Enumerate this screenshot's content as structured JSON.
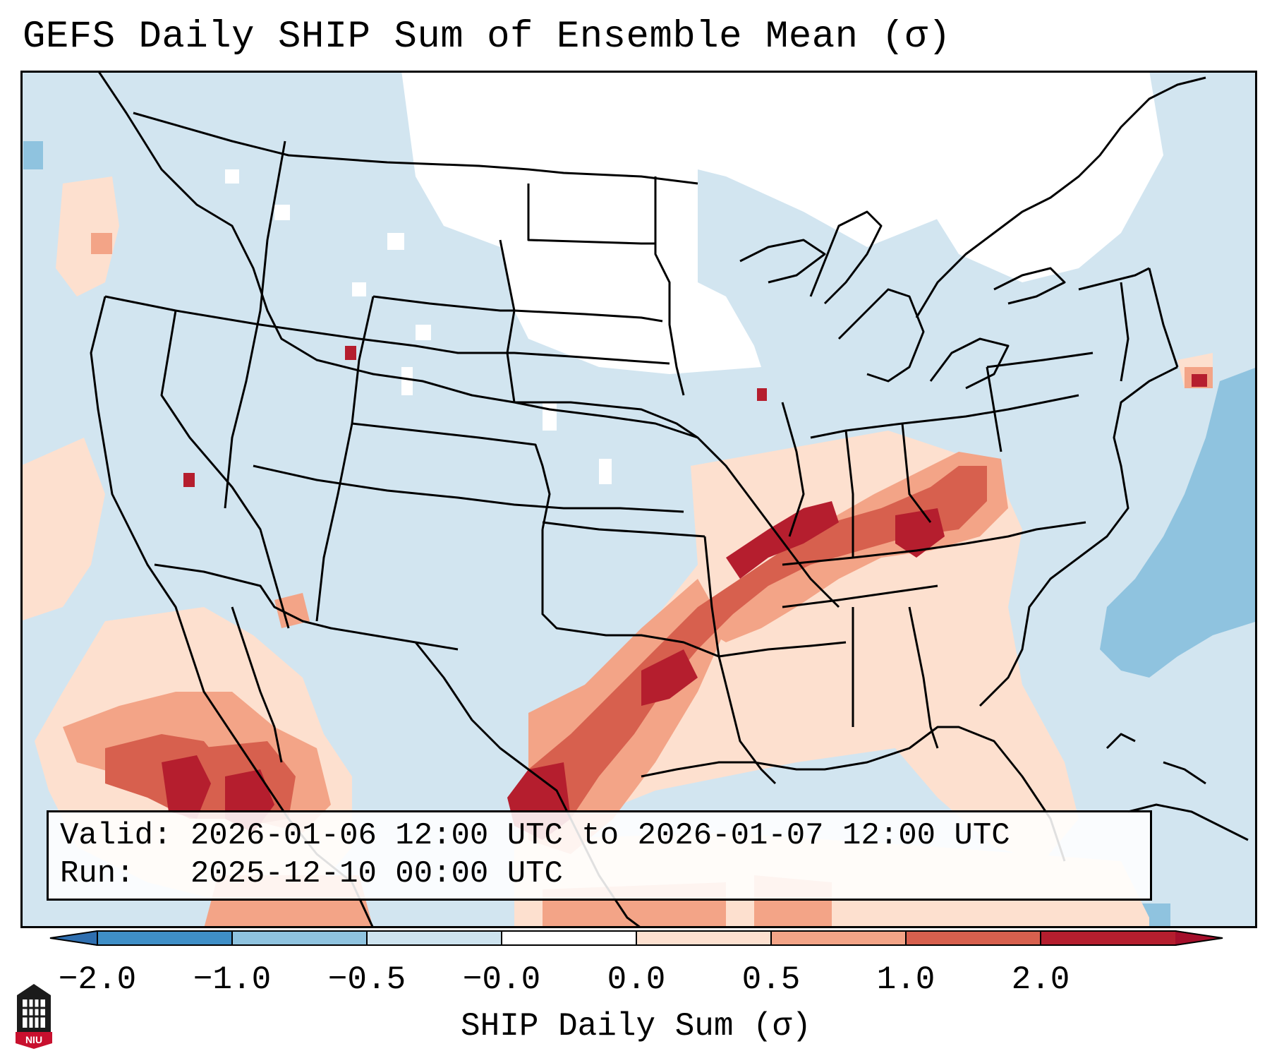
{
  "title": "GEFS Daily SHIP Sum of Ensemble Mean (σ)",
  "info": {
    "valid_label": "Valid:",
    "valid_value": "2026-01-06 12:00 UTC to 2026-01-07 12:00 UTC",
    "run_label": "Run:",
    "run_value": "2025-12-10 00:00 UTC"
  },
  "colorbar": {
    "label": "SHIP Daily Sum (σ)",
    "ticks": [
      "−2.0",
      "−1.0",
      "−0.5",
      "−0.0",
      "0.0",
      "0.5",
      "1.0",
      "2.0"
    ],
    "colors": [
      "#3f8fc7",
      "#8fc3df",
      "#cde3ef",
      "#ffffff",
      "#fde0cf",
      "#f3a487",
      "#d7604e",
      "#b51e2e"
    ],
    "under_color": "#2f6fb0",
    "over_color": "#a50f2b"
  },
  "map": {
    "ocean_color": "#d2e5f0",
    "neutral_color": "#ffffff",
    "border_color": "#000000"
  },
  "logo": {
    "text": "NIU"
  }
}
